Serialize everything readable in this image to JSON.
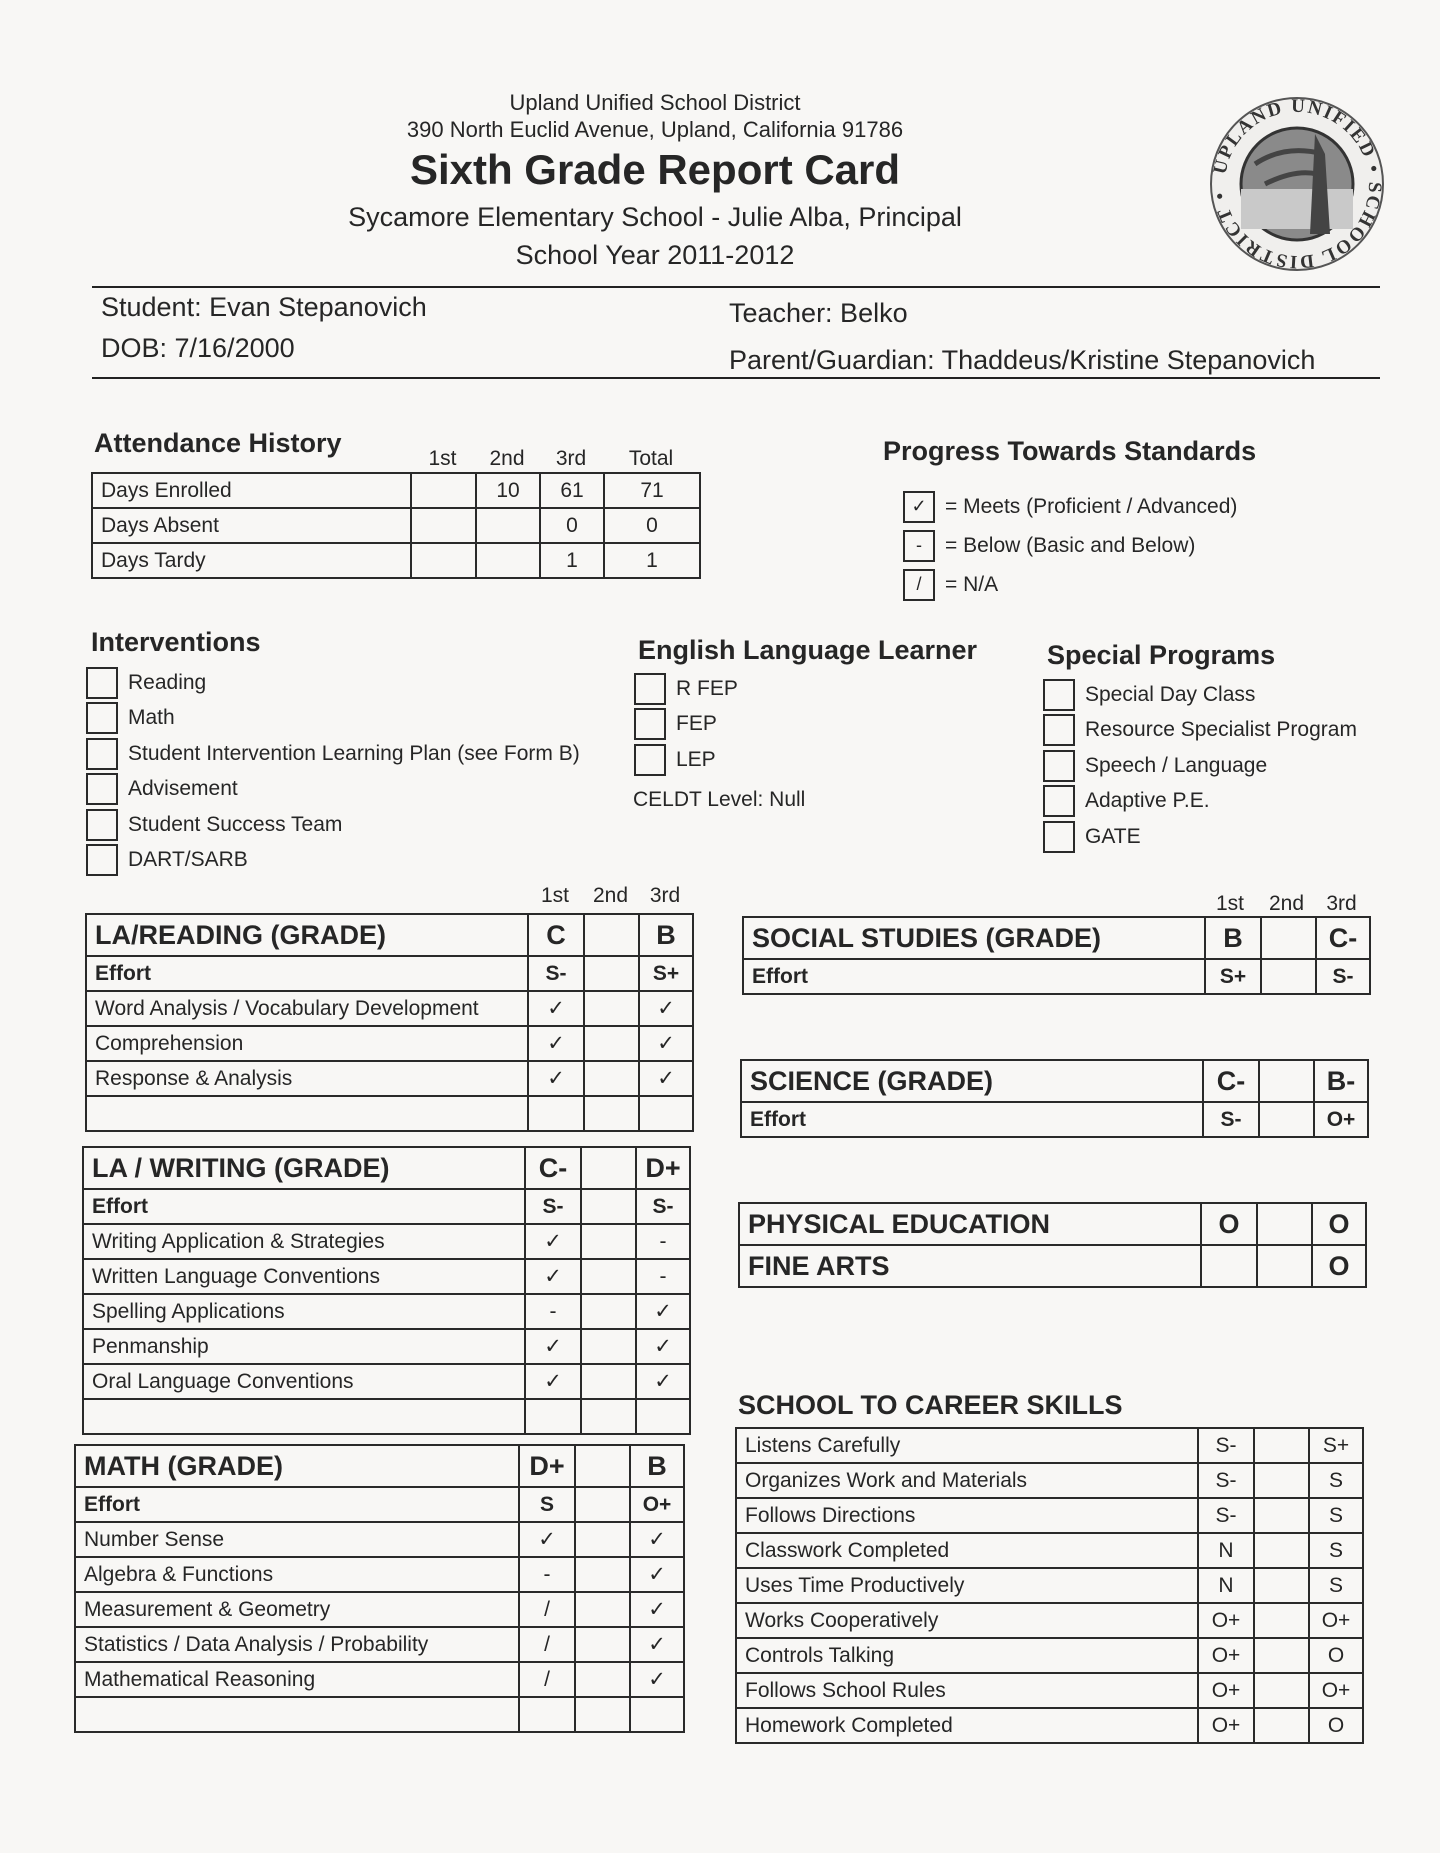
{
  "header": {
    "district": "Upland Unified School District",
    "address": "390 North Euclid Avenue, Upland, California 91786",
    "title": "Sixth Grade Report Card",
    "school": "Sycamore Elementary School - Julie Alba, Principal",
    "year": "School Year 2011-2012",
    "seal_text": "UPLAND UNIFIED SCHOOL DISTRICT"
  },
  "student": {
    "student": "Student: Evan Stepanovich",
    "dob": "DOB: 7/16/2000",
    "teacher": "Teacher: Belko",
    "parent": "Parent/Guardian: Thaddeus/Kristine Stepanovich"
  },
  "attendance": {
    "title": "Attendance History",
    "columns": [
      "1st",
      "2nd",
      "3rd",
      "Total"
    ],
    "rows": [
      [
        "Days Enrolled",
        "",
        "10",
        "61",
        "71"
      ],
      [
        "Days Absent",
        "",
        "",
        "0",
        "0"
      ],
      [
        "Days Tardy",
        "",
        "",
        "1",
        "1"
      ]
    ]
  },
  "progress": {
    "title": "Progress Towards Standards",
    "legend": [
      {
        "mark": "✓",
        "text": "= Meets (Proficient / Advanced)"
      },
      {
        "mark": "-",
        "text": "= Below (Basic and Below)"
      },
      {
        "mark": "/",
        "text": "= N/A"
      }
    ]
  },
  "interventions": {
    "title": "Interventions",
    "items": [
      "Reading",
      "Math",
      "Student Intervention Learning Plan (see Form B)",
      "Advisement",
      "Student Success Team",
      "DART/SARB"
    ]
  },
  "ell": {
    "title": "English Language Learner",
    "items": [
      "R FEP",
      "FEP",
      "LEP"
    ],
    "celdt": "CELDT Level: Null"
  },
  "special": {
    "title": "Special Programs",
    "items": [
      "Special Day Class",
      "Resource Specialist Program",
      "Speech / Language",
      "Adaptive P.E.",
      "GATE"
    ]
  },
  "terms": [
    "1st",
    "2nd",
    "3rd"
  ],
  "la_reading": [
    [
      "LA/READING (GRADE)",
      "C",
      "",
      "B"
    ],
    [
      "Effort",
      "S-",
      "",
      "S+"
    ],
    [
      "Word Analysis / Vocabulary Development",
      "✓",
      "",
      "✓"
    ],
    [
      "Comprehension",
      "✓",
      "",
      "✓"
    ],
    [
      "Response & Analysis",
      "✓",
      "",
      "✓"
    ],
    [
      "",
      "",
      "",
      ""
    ]
  ],
  "la_writing": [
    [
      "LA / WRITING (GRADE)",
      "C-",
      "",
      "D+"
    ],
    [
      "Effort",
      "S-",
      "",
      "S-"
    ],
    [
      "Writing Application & Strategies",
      "✓",
      "",
      "-"
    ],
    [
      "Written Language Conventions",
      "✓",
      "",
      "-"
    ],
    [
      "Spelling Applications",
      "-",
      "",
      "✓"
    ],
    [
      "Penmanship",
      "✓",
      "",
      "✓"
    ],
    [
      "Oral Language Conventions",
      "✓",
      "",
      "✓"
    ],
    [
      "",
      "",
      "",
      ""
    ]
  ],
  "math": [
    [
      "MATH (GRADE)",
      "D+",
      "",
      "B"
    ],
    [
      "Effort",
      "S",
      "",
      "O+"
    ],
    [
      "Number Sense",
      "✓",
      "",
      "✓"
    ],
    [
      "Algebra & Functions",
      "-",
      "",
      "✓"
    ],
    [
      "Measurement & Geometry",
      "/",
      "",
      "✓"
    ],
    [
      "Statistics / Data Analysis / Probability",
      "/",
      "",
      "✓"
    ],
    [
      "Mathematical Reasoning",
      "/",
      "",
      "✓"
    ],
    [
      "",
      "",
      "",
      ""
    ]
  ],
  "social_studies": [
    [
      "SOCIAL STUDIES (GRADE)",
      "B",
      "",
      "C-"
    ],
    [
      "Effort",
      "S+",
      "",
      "S-"
    ]
  ],
  "science": [
    [
      "SCIENCE (GRADE)",
      "C-",
      "",
      "B-"
    ],
    [
      "Effort",
      "S-",
      "",
      "O+"
    ]
  ],
  "pe_arts": [
    [
      "PHYSICAL EDUCATION",
      "O",
      "",
      "O"
    ],
    [
      "FINE ARTS",
      "",
      "",
      "O"
    ]
  ],
  "career": {
    "title": "SCHOOL TO CAREER SKILLS",
    "rows": [
      [
        "Listens Carefully",
        "S-",
        "",
        "S+"
      ],
      [
        "Organizes Work and Materials",
        "S-",
        "",
        "S"
      ],
      [
        "Follows Directions",
        "S-",
        "",
        "S"
      ],
      [
        "Classwork Completed",
        "N",
        "",
        "S"
      ],
      [
        "Uses Time Productively",
        "N",
        "",
        "S"
      ],
      [
        "Works Cooperatively",
        "O+",
        "",
        "O+"
      ],
      [
        "Controls Talking",
        "O+",
        "",
        "O"
      ],
      [
        "Follows School Rules",
        "O+",
        "",
        "O+"
      ],
      [
        "Homework Completed",
        "O+",
        "",
        "O"
      ]
    ]
  }
}
